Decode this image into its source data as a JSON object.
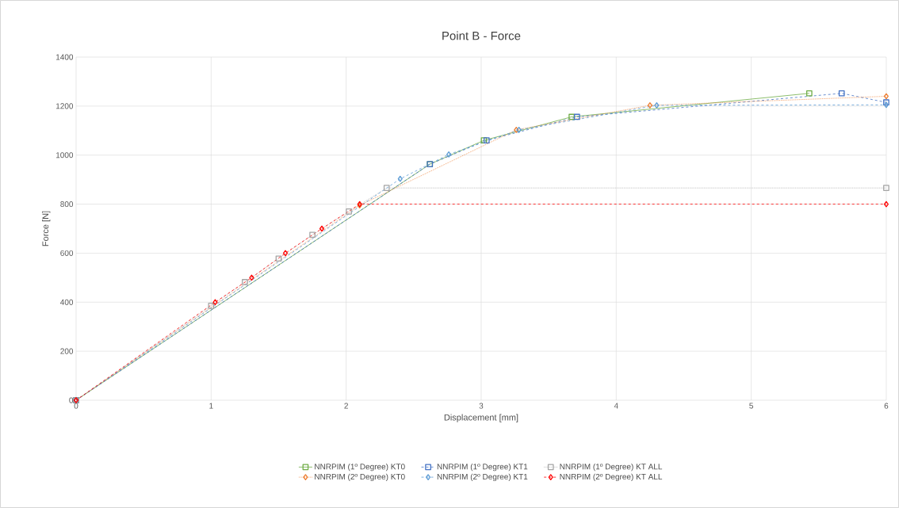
{
  "chart_data": {
    "type": "line",
    "title": "Point B - Force",
    "xlabel": "Displacement [mm]",
    "ylabel": "Force  [N]",
    "xlim": [
      0,
      6
    ],
    "xticks": [
      0,
      1,
      2,
      3,
      4,
      5,
      6
    ],
    "ylim": [
      0,
      1400
    ],
    "yticks": [
      0,
      200,
      400,
      600,
      800,
      1000,
      1200,
      1400
    ],
    "grid": true,
    "legend": "bottom",
    "series": [
      {
        "name": "NNRPIM (1º Degree) KT0",
        "color": "#70ad47",
        "marker": "square",
        "line_style": "solid",
        "x": [
          0,
          2.62,
          3.02,
          3.67,
          5.43
        ],
        "values": [
          0,
          963,
          1060,
          1156,
          1252
        ]
      },
      {
        "name": "NNRPIM (1º Degree) KT1",
        "color": "#4472c4",
        "marker": "square",
        "line_style": "dashed",
        "x": [
          0,
          2.62,
          3.04,
          3.71,
          5.67,
          6
        ],
        "values": [
          0,
          963,
          1060,
          1156,
          1252,
          1215
        ]
      },
      {
        "name": "NNRPIM (1º Degree) KT ALL",
        "color": "#a5a5a5",
        "marker": "square",
        "line_style": "dotted",
        "x": [
          0,
          1.0,
          1.25,
          1.5,
          1.75,
          2.02,
          2.3,
          6
        ],
        "values": [
          0,
          385,
          482,
          578,
          675,
          770,
          866,
          866
        ]
      },
      {
        "name": "NNRPIM (2º Degree) KT0",
        "color": "#ed7d31",
        "marker": "diamond",
        "line_style": "dotted",
        "x": [
          0,
          2.1,
          3.26,
          4.25,
          6
        ],
        "values": [
          0,
          795,
          1103,
          1203,
          1240
        ]
      },
      {
        "name": "NNRPIM (2º Degree) KT1",
        "color": "#5b9bd5",
        "marker": "diamond",
        "line_style": "dashed",
        "x": [
          0,
          2.4,
          2.76,
          3.28,
          4.3,
          6
        ],
        "values": [
          0,
          903,
          1003,
          1103,
          1203,
          1205
        ]
      },
      {
        "name": "NNRPIM (2º Degree) KT ALL",
        "color": "#ff0000",
        "marker": "diamond",
        "line_style": "dashed",
        "x": [
          0,
          1.03,
          1.3,
          1.55,
          1.82,
          2.1,
          6
        ],
        "values": [
          0,
          400,
          500,
          600,
          700,
          800,
          800
        ]
      }
    ]
  }
}
